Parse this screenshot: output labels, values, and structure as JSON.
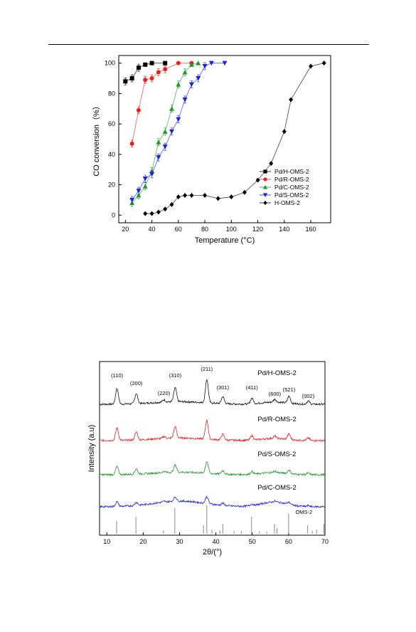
{
  "chart_data": [
    {
      "type": "line",
      "title": "",
      "xlabel": "Temperature (°C)",
      "ylabel": "CO conversion（%）",
      "xlim": [
        15,
        175
      ],
      "ylim": [
        -5,
        105
      ],
      "xticks": [
        20,
        40,
        60,
        80,
        100,
        120,
        140,
        160
      ],
      "yticks": [
        0,
        20,
        40,
        60,
        80,
        100
      ],
      "grid": false,
      "legend_position": "bottom-right",
      "series": [
        {
          "name": "Pd/H-OMS-2",
          "marker": "square",
          "color": "#000000",
          "x": [
            20,
            25,
            30,
            35,
            40,
            50
          ],
          "y": [
            88,
            90,
            97,
            99,
            100,
            100
          ]
        },
        {
          "name": "Pd/R-OMS-2",
          "marker": "circle",
          "color": "#e8201c",
          "x": [
            25,
            30,
            35,
            40,
            45,
            50,
            60,
            70
          ],
          "y": [
            47,
            69,
            89,
            90,
            94,
            96,
            100,
            100
          ]
        },
        {
          "name": "Pd/C-OMS-2",
          "marker": "triangle-up",
          "color": "#1f9a2c",
          "x": [
            25,
            30,
            35,
            40,
            45,
            50,
            55,
            60,
            65,
            70,
            75
          ],
          "y": [
            8,
            13,
            19,
            29,
            48,
            55,
            70,
            86,
            94,
            99,
            100
          ]
        },
        {
          "name": "Pd/S-OMS-2",
          "marker": "triangle-down",
          "color": "#1a23d8",
          "x": [
            25,
            30,
            35,
            40,
            45,
            50,
            55,
            60,
            65,
            70,
            75,
            80,
            85,
            95
          ],
          "y": [
            10,
            16,
            24,
            27,
            38,
            45,
            55,
            63,
            76,
            86,
            90,
            98,
            100,
            100
          ]
        },
        {
          "name": "H-OMS-2",
          "marker": "diamond",
          "color": "#000000",
          "x": [
            35,
            40,
            45,
            50,
            55,
            60,
            65,
            70,
            80,
            90,
            100,
            110,
            120,
            130,
            140,
            145,
            160,
            170
          ],
          "y": [
            1,
            1,
            2,
            4,
            7,
            12,
            13,
            13,
            13,
            11,
            12,
            15,
            23,
            34,
            55,
            76,
            98,
            100
          ]
        }
      ]
    },
    {
      "type": "line",
      "title": "",
      "xlabel": "2θ/(°)",
      "ylabel": "Intensity (a.u)",
      "xlim": [
        8,
        70
      ],
      "xticks": [
        10,
        20,
        30,
        40,
        50,
        60,
        70
      ],
      "grid": false,
      "series": [
        {
          "name": "Pd/H-OMS-2",
          "color": "#111111",
          "offset": 3,
          "scale": 1.0
        },
        {
          "name": "Pd/R-OMS-2",
          "color": "#e8201c",
          "offset": 2,
          "scale": 0.8
        },
        {
          "name": "Pd/S-OMS-2",
          "color": "#1f9a2c",
          "offset": 1,
          "scale": 0.5
        },
        {
          "name": "Pd/C-OMS-2",
          "color": "#1a23d8",
          "offset": 0,
          "scale": 0.3
        }
      ],
      "peaks": [
        {
          "hkl": "(110)",
          "two_theta": 12.8,
          "height": 1.0
        },
        {
          "hkl": "(200)",
          "two_theta": 18.1,
          "height": 0.65
        },
        {
          "hkl": "(220)",
          "two_theta": 25.7,
          "height": 0.15
        },
        {
          "hkl": "(310)",
          "two_theta": 28.8,
          "height": 0.9
        },
        {
          "hkl": "(211)",
          "two_theta": 37.5,
          "height": 1.5
        },
        {
          "hkl": "(301)",
          "two_theta": 41.9,
          "height": 0.45
        },
        {
          "hkl": "(411)",
          "two_theta": 49.9,
          "height": 0.35
        },
        {
          "hkl": "(600)",
          "two_theta": 56.2,
          "height": 0.18
        },
        {
          "hkl": "(521)",
          "two_theta": 60.1,
          "height": 0.45
        },
        {
          "hkl": "(002)",
          "two_theta": 65.4,
          "height": 0.2
        }
      ],
      "reference": {
        "name": "OMS-2",
        "sticks": [
          {
            "two_theta": 12.7,
            "h": 0.45
          },
          {
            "two_theta": 18.0,
            "h": 0.6
          },
          {
            "two_theta": 25.6,
            "h": 0.12
          },
          {
            "two_theta": 28.7,
            "h": 0.9
          },
          {
            "two_theta": 36.6,
            "h": 0.3
          },
          {
            "two_theta": 37.5,
            "h": 1.0
          },
          {
            "two_theta": 38.9,
            "h": 0.15
          },
          {
            "two_theta": 41.1,
            "h": 0.12
          },
          {
            "two_theta": 41.9,
            "h": 0.35
          },
          {
            "two_theta": 45.0,
            "h": 0.1
          },
          {
            "two_theta": 47.0,
            "h": 0.1
          },
          {
            "two_theta": 49.8,
            "h": 0.6
          },
          {
            "two_theta": 52.0,
            "h": 0.08
          },
          {
            "two_theta": 54.0,
            "h": 0.08
          },
          {
            "two_theta": 56.1,
            "h": 0.35
          },
          {
            "two_theta": 56.8,
            "h": 0.2
          },
          {
            "two_theta": 60.0,
            "h": 0.7
          },
          {
            "two_theta": 65.2,
            "h": 0.3
          },
          {
            "two_theta": 66.5,
            "h": 0.1
          },
          {
            "two_theta": 67.7,
            "h": 0.15
          },
          {
            "two_theta": 69.7,
            "h": 0.35
          }
        ]
      }
    }
  ]
}
